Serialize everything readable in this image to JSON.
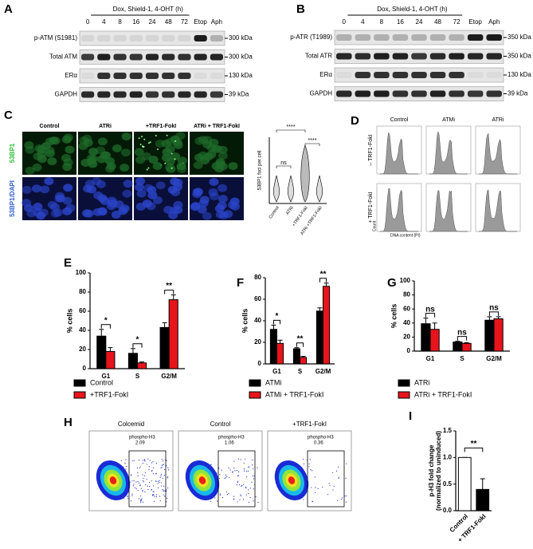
{
  "panels": {
    "A": {
      "letter": "A",
      "treatment": "Dox, Shield-1, 4-OHT (h)",
      "lanes": [
        "0",
        "4",
        "8",
        "16",
        "24",
        "48",
        "72",
        "Etop",
        "Aph"
      ],
      "rows": [
        "p-ATM (S1981)",
        "Total ATM",
        "ERα",
        "GAPDH"
      ],
      "sizes": [
        "300 kDa",
        "300 kDa",
        "130 kDa",
        "39 kDa"
      ]
    },
    "B": {
      "letter": "B",
      "treatment": "Dox, Shield-1, 4-OHT (h)",
      "lanes": [
        "0",
        "4",
        "8",
        "16",
        "24",
        "48",
        "72",
        "Etop",
        "Aph"
      ],
      "rows": [
        "p-ATR (T1989)",
        "Total ATR",
        "ERα",
        "GAPDH"
      ],
      "sizes": [
        "350 kDa",
        "350 kDa",
        "130 kDa",
        "39 kDa"
      ]
    },
    "C": {
      "letter": "C",
      "columns": [
        "Control",
        "ATRi",
        "+TRF1-FokI",
        "ATRi + TRF1-FokI"
      ],
      "rows": [
        "53BP1",
        "53BP1/DAPI"
      ],
      "plot_ylabel": "53BP1 foci per cell",
      "plot_categories": [
        "Control",
        "ATRi",
        "+TRF1-FokI",
        "ATRi +TRF1-FokI"
      ],
      "significance": [
        "****",
        "ns",
        "****"
      ]
    },
    "D": {
      "letter": "D",
      "columns": [
        "Control",
        "ATMi",
        "ATRi"
      ],
      "rows": [
        "– TRF1-FokI",
        "+ TRF1-FokI"
      ],
      "xlabel": "DNA content (PI)",
      "ylabel": "Count"
    },
    "H": {
      "letter": "H",
      "columns": [
        "Colcemid",
        "Control",
        "+TRF1-FokI"
      ],
      "gate_label": "phospho-H3",
      "gate_values": [
        2.09,
        1.06,
        0.36
      ]
    }
  },
  "chart_data": [
    {
      "type": "bar",
      "panel_label": "E",
      "ylabel": "% cells",
      "categories": [
        "G1",
        "S",
        "G2/M"
      ],
      "series": [
        {
          "name": "Control",
          "color": "#000000",
          "values": [
            34,
            16,
            43
          ],
          "errors": [
            7,
            5,
            5
          ]
        },
        {
          "name": "+TRF1-FokI",
          "color": "#e8141b",
          "values": [
            18,
            6,
            72
          ],
          "errors": [
            4,
            1,
            5
          ]
        }
      ],
      "annotations": [
        "*",
        "*",
        "**"
      ],
      "ylim": [
        0,
        100
      ],
      "yticks": [
        0,
        20,
        40,
        60,
        80,
        100
      ]
    },
    {
      "type": "bar",
      "panel_label": "F",
      "ylabel": "% cells",
      "categories": [
        "G1",
        "S",
        "G2/M"
      ],
      "series": [
        {
          "name": "ATMi",
          "color": "#000000",
          "values": [
            32,
            14,
            49
          ],
          "errors": [
            4,
            1,
            3
          ]
        },
        {
          "name": "ATMi + TRF1-FokI",
          "color": "#e8141b",
          "values": [
            19,
            6,
            72
          ],
          "errors": [
            3,
            1,
            3
          ]
        }
      ],
      "annotations": [
        "*",
        "**",
        "**"
      ],
      "ylim": [
        0,
        80
      ],
      "yticks": [
        0,
        20,
        40,
        60,
        80
      ]
    },
    {
      "type": "bar",
      "panel_label": "G",
      "ylabel": "% cells",
      "categories": [
        "G1",
        "S",
        "G2/M"
      ],
      "series": [
        {
          "name": "ATRi",
          "color": "#000000",
          "values": [
            39,
            13,
            44
          ],
          "errors": [
            8,
            1,
            5
          ]
        },
        {
          "name": "ATRi + TRF1-FokI",
          "color": "#e8141b",
          "values": [
            31,
            11,
            46
          ],
          "errors": [
            9,
            1,
            3
          ]
        }
      ],
      "annotations": [
        "ns",
        "ns",
        "ns"
      ],
      "ylim": [
        0,
        100
      ],
      "yticks": [
        0,
        20,
        40,
        60,
        80,
        100
      ]
    },
    {
      "type": "bar",
      "panel_label": "I",
      "ylabel": [
        "p-H3 fold change",
        "(normalized to uninduced)"
      ],
      "categories": [
        "Control",
        "+ TRF1-FokI"
      ],
      "values": [
        1,
        0.4
      ],
      "errors": [
        0,
        0.2
      ],
      "colors": [
        "#ffffff",
        "#000000"
      ],
      "annotations": [
        "**"
      ],
      "ylim": [
        0,
        1.5
      ],
      "yticks": [
        {
          "value": 0,
          "label": "0.0"
        },
        0.5,
        {
          "value": 1,
          "label": "1.0"
        },
        1.5
      ]
    }
  ]
}
